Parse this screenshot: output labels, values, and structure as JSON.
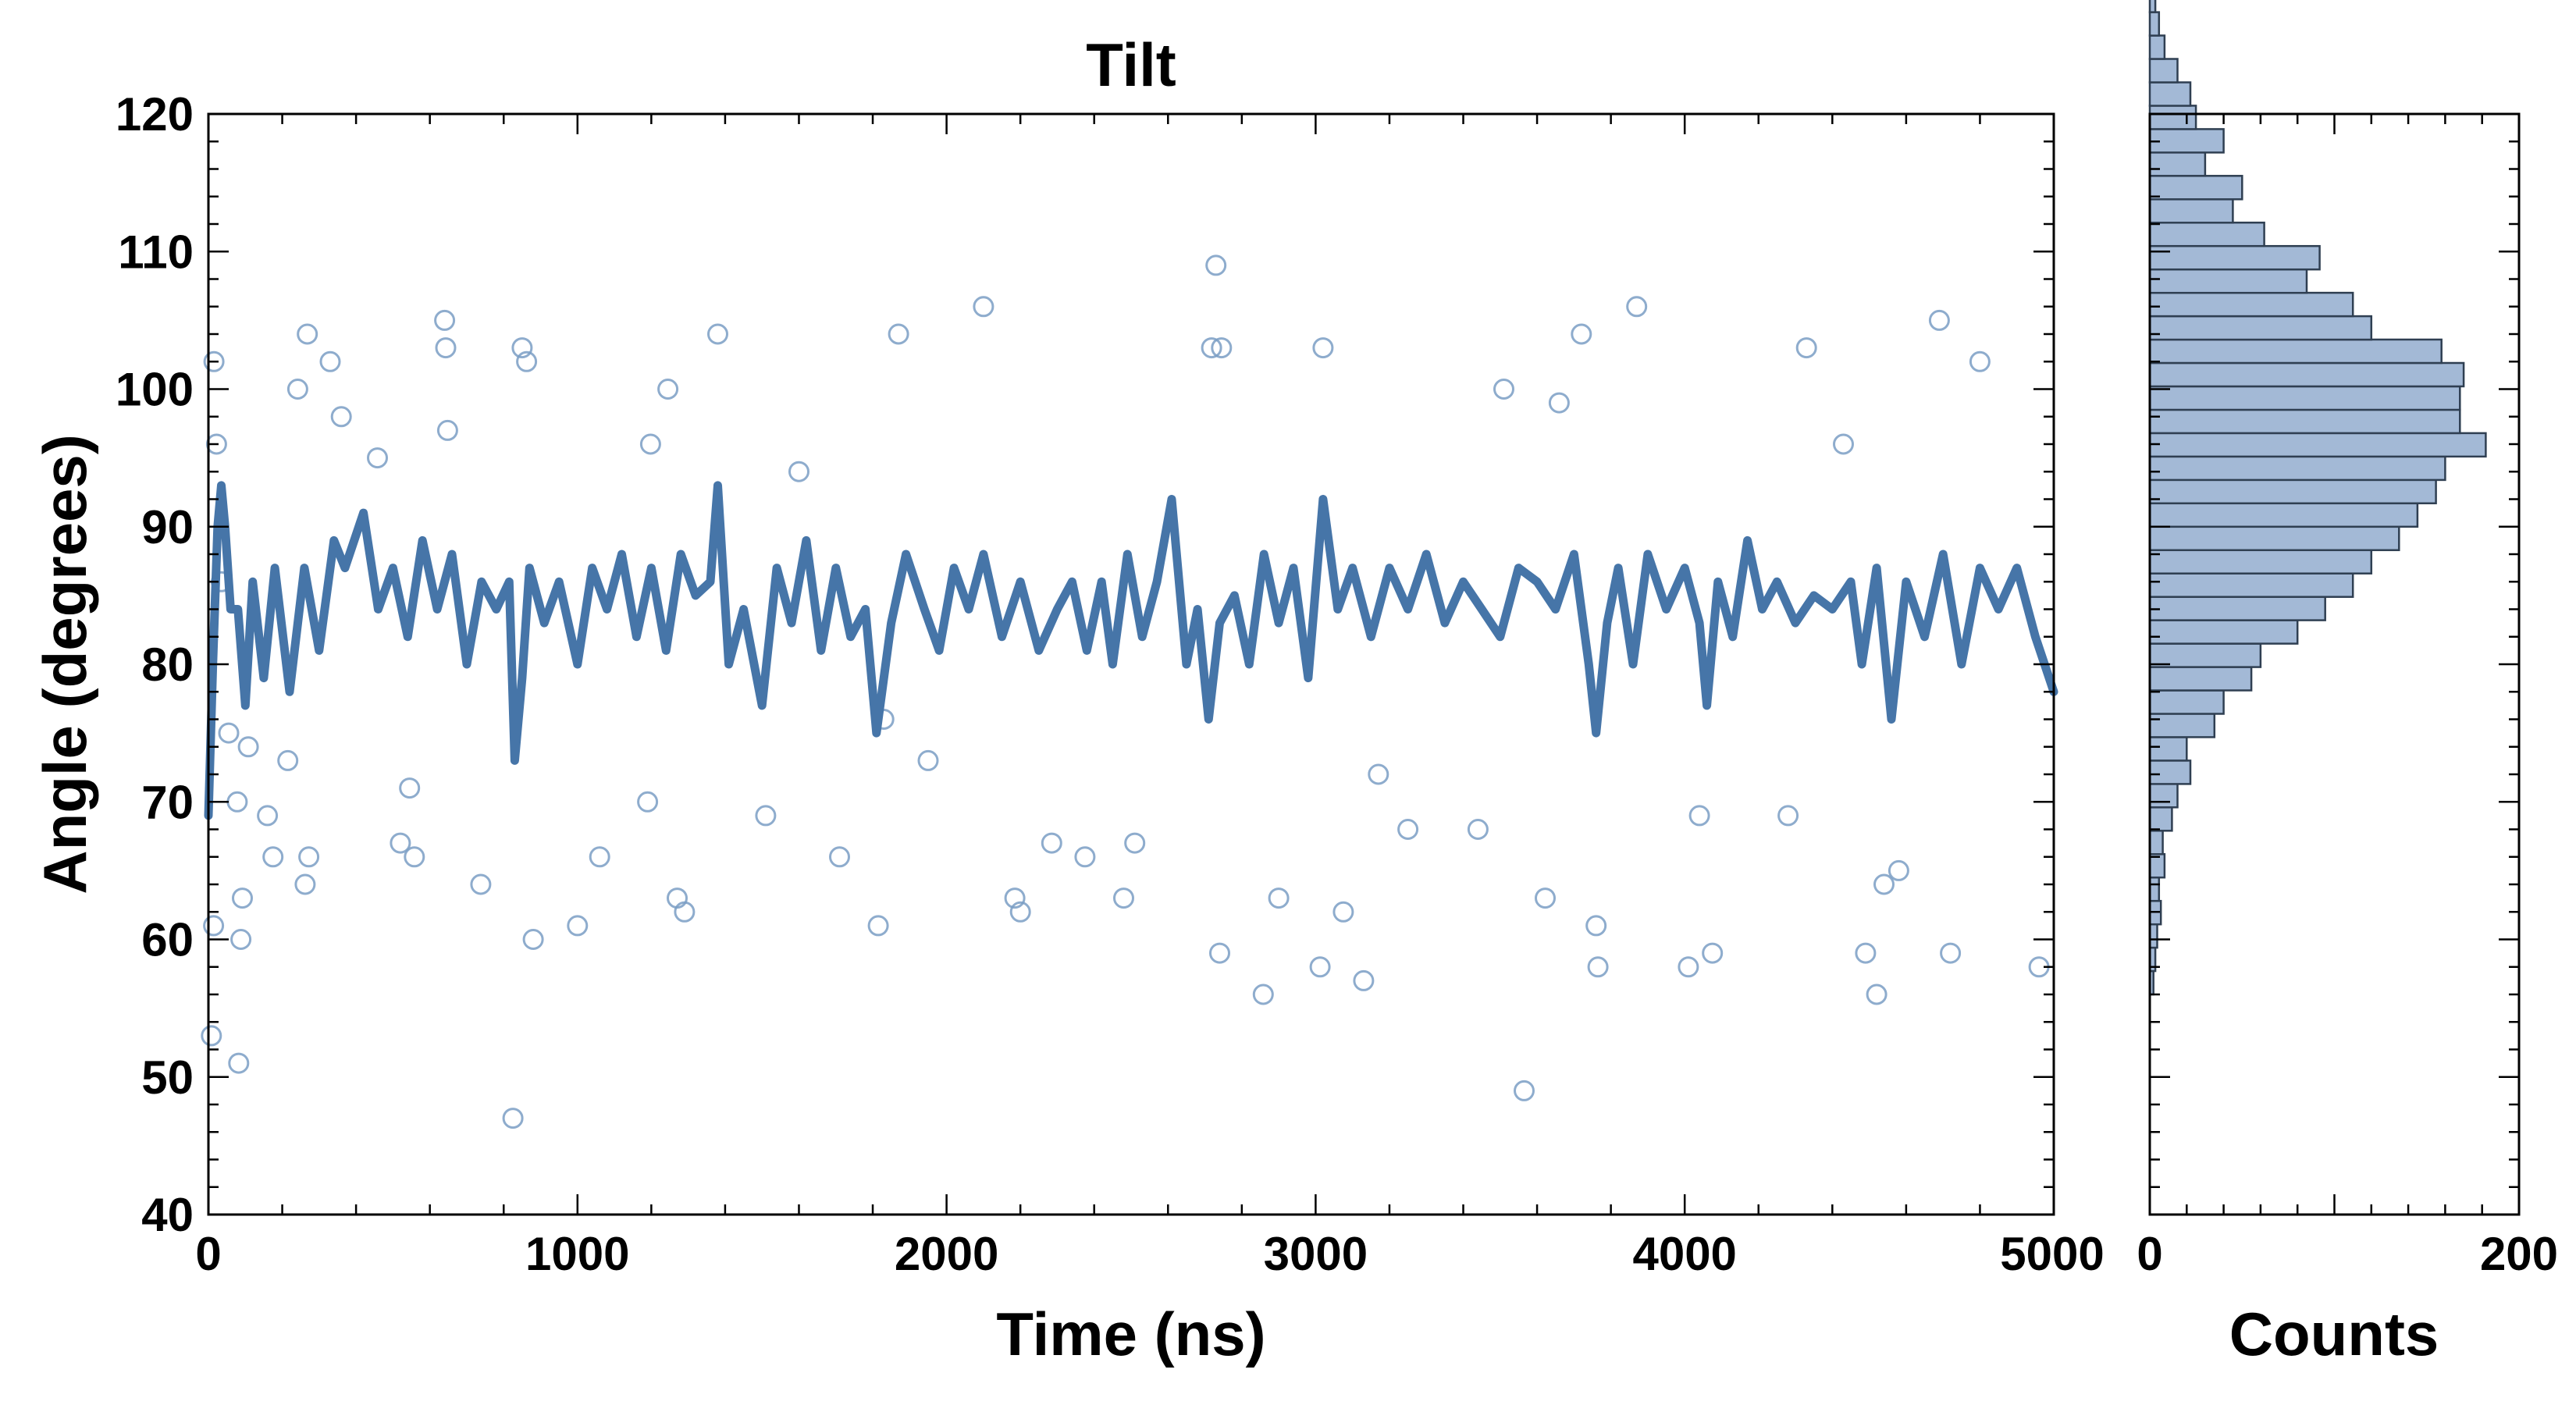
{
  "chart_data": [
    {
      "type": "scatter",
      "title": "Tilt",
      "xlabel": "Time (ns)",
      "ylabel": "Angle (degrees)",
      "xlim": [
        0,
        5000
      ],
      "ylim": [
        40,
        120
      ],
      "xticks": [
        0,
        1000,
        2000,
        3000,
        4000,
        5000
      ],
      "yticks": [
        40,
        50,
        60,
        70,
        80,
        90,
        100,
        110,
        120
      ],
      "grid": false,
      "colors": {
        "marker": "#7a9dc4",
        "line": "#4675a8"
      },
      "series": [
        {
          "name": "Angle samples",
          "style": "hollow-circle",
          "points": [
            [
              8,
              53
            ],
            [
              14,
              61
            ],
            [
              15,
              102
            ],
            [
              22,
              96
            ],
            [
              35,
              86
            ],
            [
              55,
              75
            ],
            [
              78,
              70
            ],
            [
              82,
              51
            ],
            [
              88,
              60
            ],
            [
              92,
              63
            ],
            [
              108,
              74
            ],
            [
              160,
              69
            ],
            [
              175,
              66
            ],
            [
              215,
              73
            ],
            [
              262,
              64
            ],
            [
              272,
              66
            ],
            [
              242,
              100
            ],
            [
              268,
              104
            ],
            [
              330,
              102
            ],
            [
              360,
              98
            ],
            [
              458,
              95
            ],
            [
              520,
              67
            ],
            [
              545,
              71
            ],
            [
              558,
              66
            ],
            [
              640,
              105
            ],
            [
              643,
              103
            ],
            [
              648,
              97
            ],
            [
              738,
              64
            ],
            [
              825,
              47
            ],
            [
              880,
              60
            ],
            [
              850,
              103
            ],
            [
              862,
              102
            ],
            [
              1000,
              61
            ],
            [
              1060,
              66
            ],
            [
              1190,
              70
            ],
            [
              1198,
              96
            ],
            [
              1245,
              100
            ],
            [
              1270,
              63
            ],
            [
              1380,
              104
            ],
            [
              1290,
              62
            ],
            [
              1510,
              69
            ],
            [
              1600,
              94
            ],
            [
              1710,
              66
            ],
            [
              1815,
              61
            ],
            [
              1830,
              76
            ],
            [
              1870,
              104
            ],
            [
              1950,
              73
            ],
            [
              2100,
              106
            ],
            [
              2185,
              63
            ],
            [
              2200,
              62
            ],
            [
              2285,
              67
            ],
            [
              2375,
              66
            ],
            [
              2480,
              63
            ],
            [
              2510,
              67
            ],
            [
              2718,
              103
            ],
            [
              2730,
              109
            ],
            [
              2745,
              103
            ],
            [
              2740,
              59
            ],
            [
              2858,
              56
            ],
            [
              2900,
              63
            ],
            [
              3012,
              58
            ],
            [
              3020,
              103
            ],
            [
              3075,
              62
            ],
            [
              3130,
              57
            ],
            [
              3170,
              72
            ],
            [
              3250,
              68
            ],
            [
              3440,
              68
            ],
            [
              3510,
              100
            ],
            [
              3565,
              49
            ],
            [
              3622,
              63
            ],
            [
              3660,
              99
            ],
            [
              3720,
              104
            ],
            [
              3760,
              61
            ],
            [
              3765,
              58
            ],
            [
              3870,
              106
            ],
            [
              4010,
              58
            ],
            [
              4040,
              69
            ],
            [
              4075,
              59
            ],
            [
              4280,
              69
            ],
            [
              4330,
              103
            ],
            [
              4430,
              96
            ],
            [
              4520,
              56
            ],
            [
              4490,
              59
            ],
            [
              4540,
              64
            ],
            [
              4580,
              65
            ],
            [
              4690,
              105
            ],
            [
              4720,
              59
            ],
            [
              4800,
              102
            ],
            [
              4960,
              58
            ]
          ]
        },
        {
          "name": "Running average",
          "style": "line",
          "points": [
            [
              0,
              69
            ],
            [
              12,
              80
            ],
            [
              25,
              90
            ],
            [
              35,
              93
            ],
            [
              45,
              90
            ],
            [
              60,
              84
            ],
            [
              80,
              84
            ],
            [
              100,
              77
            ],
            [
              120,
              86
            ],
            [
              150,
              79
            ],
            [
              180,
              87
            ],
            [
              220,
              78
            ],
            [
              260,
              87
            ],
            [
              300,
              81
            ],
            [
              340,
              89
            ],
            [
              370,
              87
            ],
            [
              420,
              91
            ],
            [
              460,
              84
            ],
            [
              500,
              87
            ],
            [
              540,
              82
            ],
            [
              580,
              89
            ],
            [
              620,
              84
            ],
            [
              660,
              88
            ],
            [
              700,
              80
            ],
            [
              740,
              86
            ],
            [
              780,
              84
            ],
            [
              815,
              86
            ],
            [
              830,
              73
            ],
            [
              850,
              79
            ],
            [
              870,
              87
            ],
            [
              910,
              83
            ],
            [
              950,
              86
            ],
            [
              1000,
              80
            ],
            [
              1040,
              87
            ],
            [
              1080,
              84
            ],
            [
              1120,
              88
            ],
            [
              1160,
              82
            ],
            [
              1200,
              87
            ],
            [
              1240,
              81
            ],
            [
              1280,
              88
            ],
            [
              1320,
              85
            ],
            [
              1360,
              86
            ],
            [
              1380,
              93
            ],
            [
              1410,
              80
            ],
            [
              1450,
              84
            ],
            [
              1500,
              77
            ],
            [
              1540,
              87
            ],
            [
              1580,
              83
            ],
            [
              1620,
              89
            ],
            [
              1660,
              81
            ],
            [
              1700,
              87
            ],
            [
              1740,
              82
            ],
            [
              1780,
              84
            ],
            [
              1810,
              75
            ],
            [
              1850,
              83
            ],
            [
              1890,
              88
            ],
            [
              1940,
              84
            ],
            [
              1980,
              81
            ],
            [
              2020,
              87
            ],
            [
              2060,
              84
            ],
            [
              2100,
              88
            ],
            [
              2150,
              82
            ],
            [
              2200,
              86
            ],
            [
              2250,
              81
            ],
            [
              2300,
              84
            ],
            [
              2340,
              86
            ],
            [
              2380,
              81
            ],
            [
              2420,
              86
            ],
            [
              2450,
              80
            ],
            [
              2490,
              88
            ],
            [
              2530,
              82
            ],
            [
              2570,
              86
            ],
            [
              2610,
              92
            ],
            [
              2650,
              80
            ],
            [
              2680,
              84
            ],
            [
              2710,
              76
            ],
            [
              2740,
              83
            ],
            [
              2780,
              85
            ],
            [
              2820,
              80
            ],
            [
              2860,
              88
            ],
            [
              2900,
              83
            ],
            [
              2940,
              87
            ],
            [
              2980,
              79
            ],
            [
              3020,
              92
            ],
            [
              3060,
              84
            ],
            [
              3100,
              87
            ],
            [
              3150,
              82
            ],
            [
              3200,
              87
            ],
            [
              3250,
              84
            ],
            [
              3300,
              88
            ],
            [
              3350,
              83
            ],
            [
              3400,
              86
            ],
            [
              3450,
              84
            ],
            [
              3500,
              82
            ],
            [
              3550,
              87
            ],
            [
              3600,
              86
            ],
            [
              3650,
              84
            ],
            [
              3700,
              88
            ],
            [
              3740,
              80
            ],
            [
              3760,
              75
            ],
            [
              3790,
              83
            ],
            [
              3820,
              87
            ],
            [
              3860,
              80
            ],
            [
              3900,
              88
            ],
            [
              3950,
              84
            ],
            [
              4000,
              87
            ],
            [
              4040,
              83
            ],
            [
              4060,
              77
            ],
            [
              4090,
              86
            ],
            [
              4130,
              82
            ],
            [
              4170,
              89
            ],
            [
              4210,
              84
            ],
            [
              4250,
              86
            ],
            [
              4300,
              83
            ],
            [
              4350,
              85
            ],
            [
              4400,
              84
            ],
            [
              4450,
              86
            ],
            [
              4480,
              80
            ],
            [
              4520,
              87
            ],
            [
              4560,
              76
            ],
            [
              4600,
              86
            ],
            [
              4650,
              82
            ],
            [
              4700,
              88
            ],
            [
              4750,
              80
            ],
            [
              4800,
              87
            ],
            [
              4850,
              84
            ],
            [
              4900,
              87
            ],
            [
              4950,
              82
            ],
            [
              5000,
              78
            ]
          ]
        }
      ]
    },
    {
      "type": "bar",
      "orientation": "horizontal",
      "title": "",
      "xlabel": "Counts",
      "ylabel": "",
      "xlim": [
        0,
        200
      ],
      "ylim": [
        40,
        120
      ],
      "xticks": [
        0,
        200
      ],
      "bin_width": 1.7,
      "bin_start": 56,
      "colors": {
        "fill": "#a3b9d6",
        "edge": "#2f3f52"
      },
      "values": [
        2,
        3,
        4,
        6,
        5,
        8,
        7,
        12,
        15,
        22,
        20,
        35,
        40,
        55,
        60,
        80,
        95,
        110,
        120,
        135,
        145,
        155,
        160,
        182,
        168,
        168,
        170,
        158,
        120,
        110,
        85,
        92,
        62,
        45,
        50,
        30,
        40,
        25,
        22,
        15,
        8,
        5,
        3
      ]
    }
  ]
}
